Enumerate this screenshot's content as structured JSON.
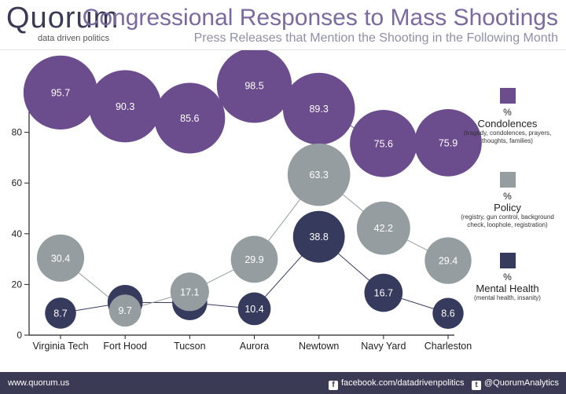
{
  "header": {
    "logo_text": "Quorum",
    "logo_sub": "data driven politics",
    "title": "Congressional Responses to Mass Shootings",
    "subtitle": "Press Releases that Mention the Shooting in the Following Month"
  },
  "footer": {
    "url": "www.quorum.us",
    "facebook": "facebook.com/datadrivenpolitics",
    "twitter": "@QuorumAnalytics",
    "facebook_icon": "facebook-icon",
    "twitter_icon": "twitter-icon"
  },
  "legend": [
    {
      "symbol": "%",
      "name": "Condolences",
      "desc": "(tragedy, condolences, prayers, thoughts, families)",
      "color": "#6b4c8c"
    },
    {
      "symbol": "%",
      "name": "Policy",
      "desc": "(registry, gun control, background check, loophole, registration)",
      "color": "#959da0"
    },
    {
      "symbol": "%",
      "name": "Mental Health",
      "desc": "(mental health, insanity)",
      "color": "#363a5c"
    }
  ],
  "chart_data": {
    "type": "scatter",
    "categories": [
      "Virginia Tech",
      "Fort Hood",
      "Tucson",
      "Aurora",
      "Newtown",
      "Navy Yard",
      "Charleston"
    ],
    "ylim": [
      0,
      100
    ],
    "yticks": [
      0,
      20,
      40,
      60,
      80
    ],
    "series": [
      {
        "name": "Condolences",
        "values": [
          95.7,
          90.3,
          85.6,
          98.5,
          89.3,
          75.6,
          75.9
        ],
        "labels": [
          "95.7",
          "90.3",
          "85.6",
          "98.5",
          "89.3",
          "75.6",
          "75.9"
        ],
        "color": "#6b4c8c"
      },
      {
        "name": "Mental Health",
        "values": [
          8.7,
          12.9,
          12.8,
          10.4,
          38.8,
          16.7,
          8.6
        ],
        "labels": [
          "8.7",
          "",
          "",
          "10.4",
          "38.8",
          "16.7",
          "8.6"
        ],
        "color": "#363a5c"
      },
      {
        "name": "Policy",
        "values": [
          30.4,
          9.7,
          17.1,
          29.9,
          63.3,
          42.2,
          29.4
        ],
        "labels": [
          "30.4",
          "9.7",
          "17.1",
          "29.9",
          "63.3",
          "42.2",
          "29.4"
        ],
        "color": "#959da0"
      }
    ]
  }
}
